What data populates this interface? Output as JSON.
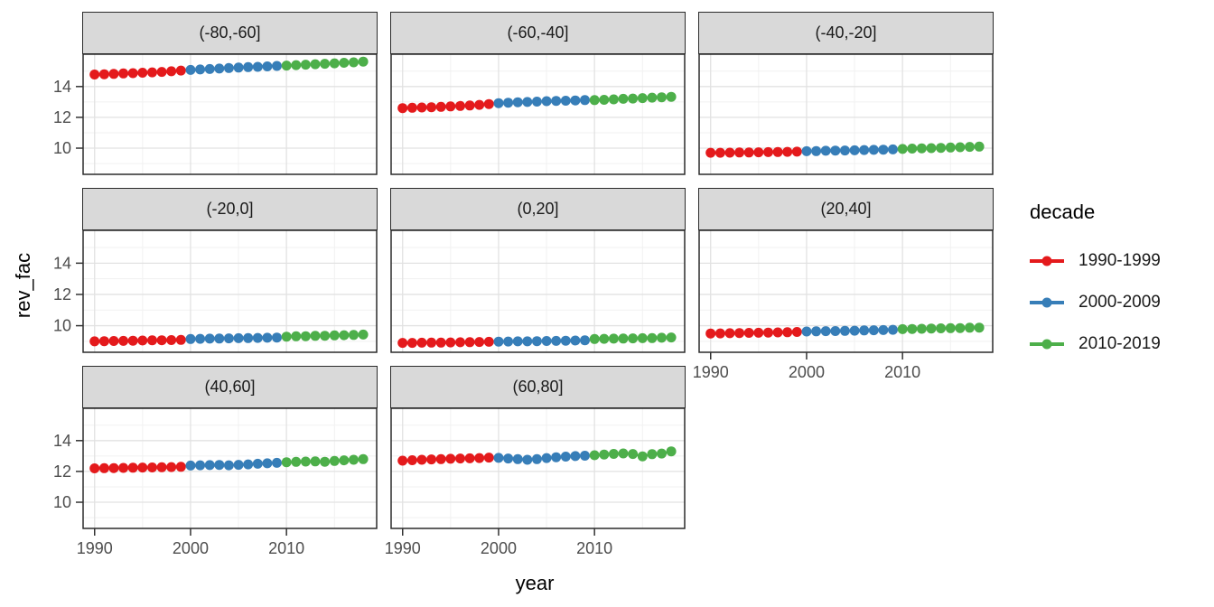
{
  "chart_data": {
    "type": "scatter",
    "title": "",
    "xlabel": "year",
    "ylabel": "rev_fac",
    "facet_variable_note": "faceted scatter plot, 8 facets in 3x3 grid, ggplot2 style",
    "x_range": [
      1988.8,
      2019.4
    ],
    "y_range": [
      8.3,
      16.1
    ],
    "x_ticks": [
      1990,
      2000,
      2010
    ],
    "y_ticks": [
      10,
      12,
      14
    ],
    "x_minor": [
      1995,
      2005,
      2015
    ],
    "y_minor": [
      9,
      11,
      13,
      15
    ],
    "grid": "major and minor gridlines on white panels",
    "panel_border_color": "#2b2b2b",
    "strip_fill": "#d9d9d9",
    "tick_label_color": "#4d4d4d",
    "legend": {
      "title": "decade",
      "position": "right",
      "items": [
        {
          "label": "1990-1999",
          "color": "#E41A1C"
        },
        {
          "label": "2000-2009",
          "color": "#377EB8"
        },
        {
          "label": "2010-2019",
          "color": "#4DAF4A"
        }
      ]
    },
    "decades": [
      {
        "label": "1990-1999",
        "start": 1990,
        "end": 1999,
        "color": "#E41A1C"
      },
      {
        "label": "2000-2009",
        "start": 2000,
        "end": 2009,
        "color": "#377EB8"
      },
      {
        "label": "2010-2019",
        "start": 2010,
        "end": 2019,
        "color": "#4DAF4A"
      }
    ],
    "years": [
      1990,
      1991,
      1992,
      1993,
      1994,
      1995,
      1996,
      1997,
      1998,
      1999,
      2000,
      2001,
      2002,
      2003,
      2004,
      2005,
      2006,
      2007,
      2008,
      2009,
      2010,
      2011,
      2012,
      2013,
      2014,
      2015,
      2016,
      2017,
      2018
    ],
    "facets": [
      {
        "label": "(-80,-60]",
        "values": [
          14.78,
          14.8,
          14.82,
          14.85,
          14.87,
          14.9,
          14.92,
          14.95,
          14.99,
          15.04,
          15.08,
          15.11,
          15.14,
          15.17,
          15.2,
          15.23,
          15.26,
          15.28,
          15.31,
          15.34,
          15.36,
          15.39,
          15.42,
          15.45,
          15.48,
          15.51,
          15.54,
          15.57,
          15.62
        ]
      },
      {
        "label": "(-60,-40]",
        "values": [
          12.6,
          12.62,
          12.64,
          12.66,
          12.68,
          12.71,
          12.74,
          12.77,
          12.81,
          12.86,
          12.92,
          12.95,
          12.98,
          13.0,
          13.02,
          13.05,
          13.07,
          13.08,
          13.1,
          13.12,
          13.12,
          13.14,
          13.17,
          13.2,
          13.22,
          13.25,
          13.28,
          13.3,
          13.33
        ]
      },
      {
        "label": "(-40,-20]",
        "values": [
          9.7,
          9.7,
          9.71,
          9.72,
          9.72,
          9.73,
          9.74,
          9.75,
          9.76,
          9.77,
          9.8,
          9.81,
          9.83,
          9.84,
          9.85,
          9.86,
          9.88,
          9.89,
          9.9,
          9.92,
          9.95,
          9.97,
          9.99,
          10.0,
          10.02,
          10.04,
          10.06,
          10.08,
          10.1
        ]
      },
      {
        "label": "(-20,0]",
        "values": [
          9.0,
          9.01,
          9.02,
          9.03,
          9.04,
          9.05,
          9.06,
          9.07,
          9.08,
          9.09,
          9.15,
          9.16,
          9.17,
          9.18,
          9.19,
          9.2,
          9.21,
          9.22,
          9.23,
          9.24,
          9.3,
          9.32,
          9.33,
          9.35,
          9.36,
          9.38,
          9.39,
          9.41,
          9.43
        ]
      },
      {
        "label": "(0,20]",
        "values": [
          8.9,
          8.9,
          8.91,
          8.92,
          8.92,
          8.93,
          8.94,
          8.95,
          8.96,
          8.97,
          8.98,
          8.99,
          9.0,
          9.0,
          9.01,
          9.02,
          9.03,
          9.04,
          9.05,
          9.06,
          9.15,
          9.16,
          9.17,
          9.18,
          9.19,
          9.2,
          9.21,
          9.23,
          9.25
        ]
      },
      {
        "label": "(20,40]",
        "values": [
          9.5,
          9.51,
          9.52,
          9.53,
          9.54,
          9.55,
          9.56,
          9.57,
          9.58,
          9.6,
          9.63,
          9.64,
          9.65,
          9.66,
          9.67,
          9.68,
          9.7,
          9.71,
          9.72,
          9.74,
          9.78,
          9.79,
          9.8,
          9.82,
          9.83,
          9.84,
          9.85,
          9.87,
          9.88
        ]
      },
      {
        "label": "(40,60]",
        "values": [
          12.2,
          12.21,
          12.22,
          12.23,
          12.24,
          12.25,
          12.26,
          12.27,
          12.28,
          12.3,
          12.38,
          12.4,
          12.41,
          12.42,
          12.4,
          12.43,
          12.46,
          12.5,
          12.53,
          12.56,
          12.6,
          12.62,
          12.64,
          12.65,
          12.63,
          12.68,
          12.72,
          12.76,
          12.8
        ]
      },
      {
        "label": "(60,80]",
        "values": [
          12.7,
          12.73,
          12.76,
          12.78,
          12.8,
          12.82,
          12.84,
          12.85,
          12.87,
          12.9,
          12.88,
          12.84,
          12.8,
          12.76,
          12.8,
          12.87,
          12.92,
          12.96,
          13.0,
          13.02,
          13.05,
          13.1,
          13.14,
          13.17,
          13.13,
          12.98,
          13.12,
          13.16,
          13.3
        ]
      }
    ]
  }
}
